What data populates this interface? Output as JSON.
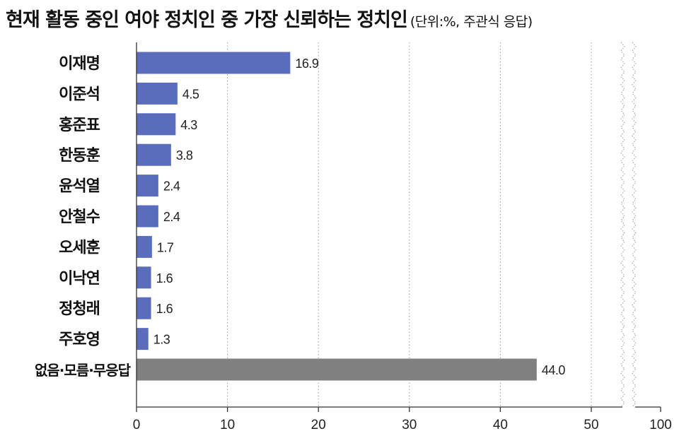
{
  "header": {
    "title": "현재 활동 중인 여야 정치인 중 가장 신뢰하는 정치인",
    "subtitle": "(단위:%, 주관식 응답)"
  },
  "chart_data": {
    "type": "bar",
    "orientation": "horizontal",
    "categories": [
      "이재명",
      "이준석",
      "홍준표",
      "한동훈",
      "윤석열",
      "안철수",
      "오세훈",
      "이낙연",
      "정청래",
      "주호영",
      "없음·모름·무응답"
    ],
    "values": [
      16.9,
      4.5,
      4.3,
      3.8,
      2.4,
      2.4,
      1.7,
      1.6,
      1.6,
      1.3,
      44.0
    ],
    "value_labels": [
      "16.9",
      "4.5",
      "4.3",
      "3.8",
      "2.4",
      "2.4",
      "1.7",
      "1.6",
      "1.6",
      "1.3",
      "44.0"
    ],
    "x_ticks": [
      "0",
      "10",
      "20",
      "30",
      "40",
      "50",
      "100"
    ],
    "xlim": [
      0,
      100
    ],
    "axis_break": "between 50 and 100",
    "grid": "vertical dotted",
    "colors": {
      "politician_bar": "#5a6dbd",
      "no_answer_bar": "#808080",
      "grid": "#999999",
      "axis": "#333333"
    }
  }
}
